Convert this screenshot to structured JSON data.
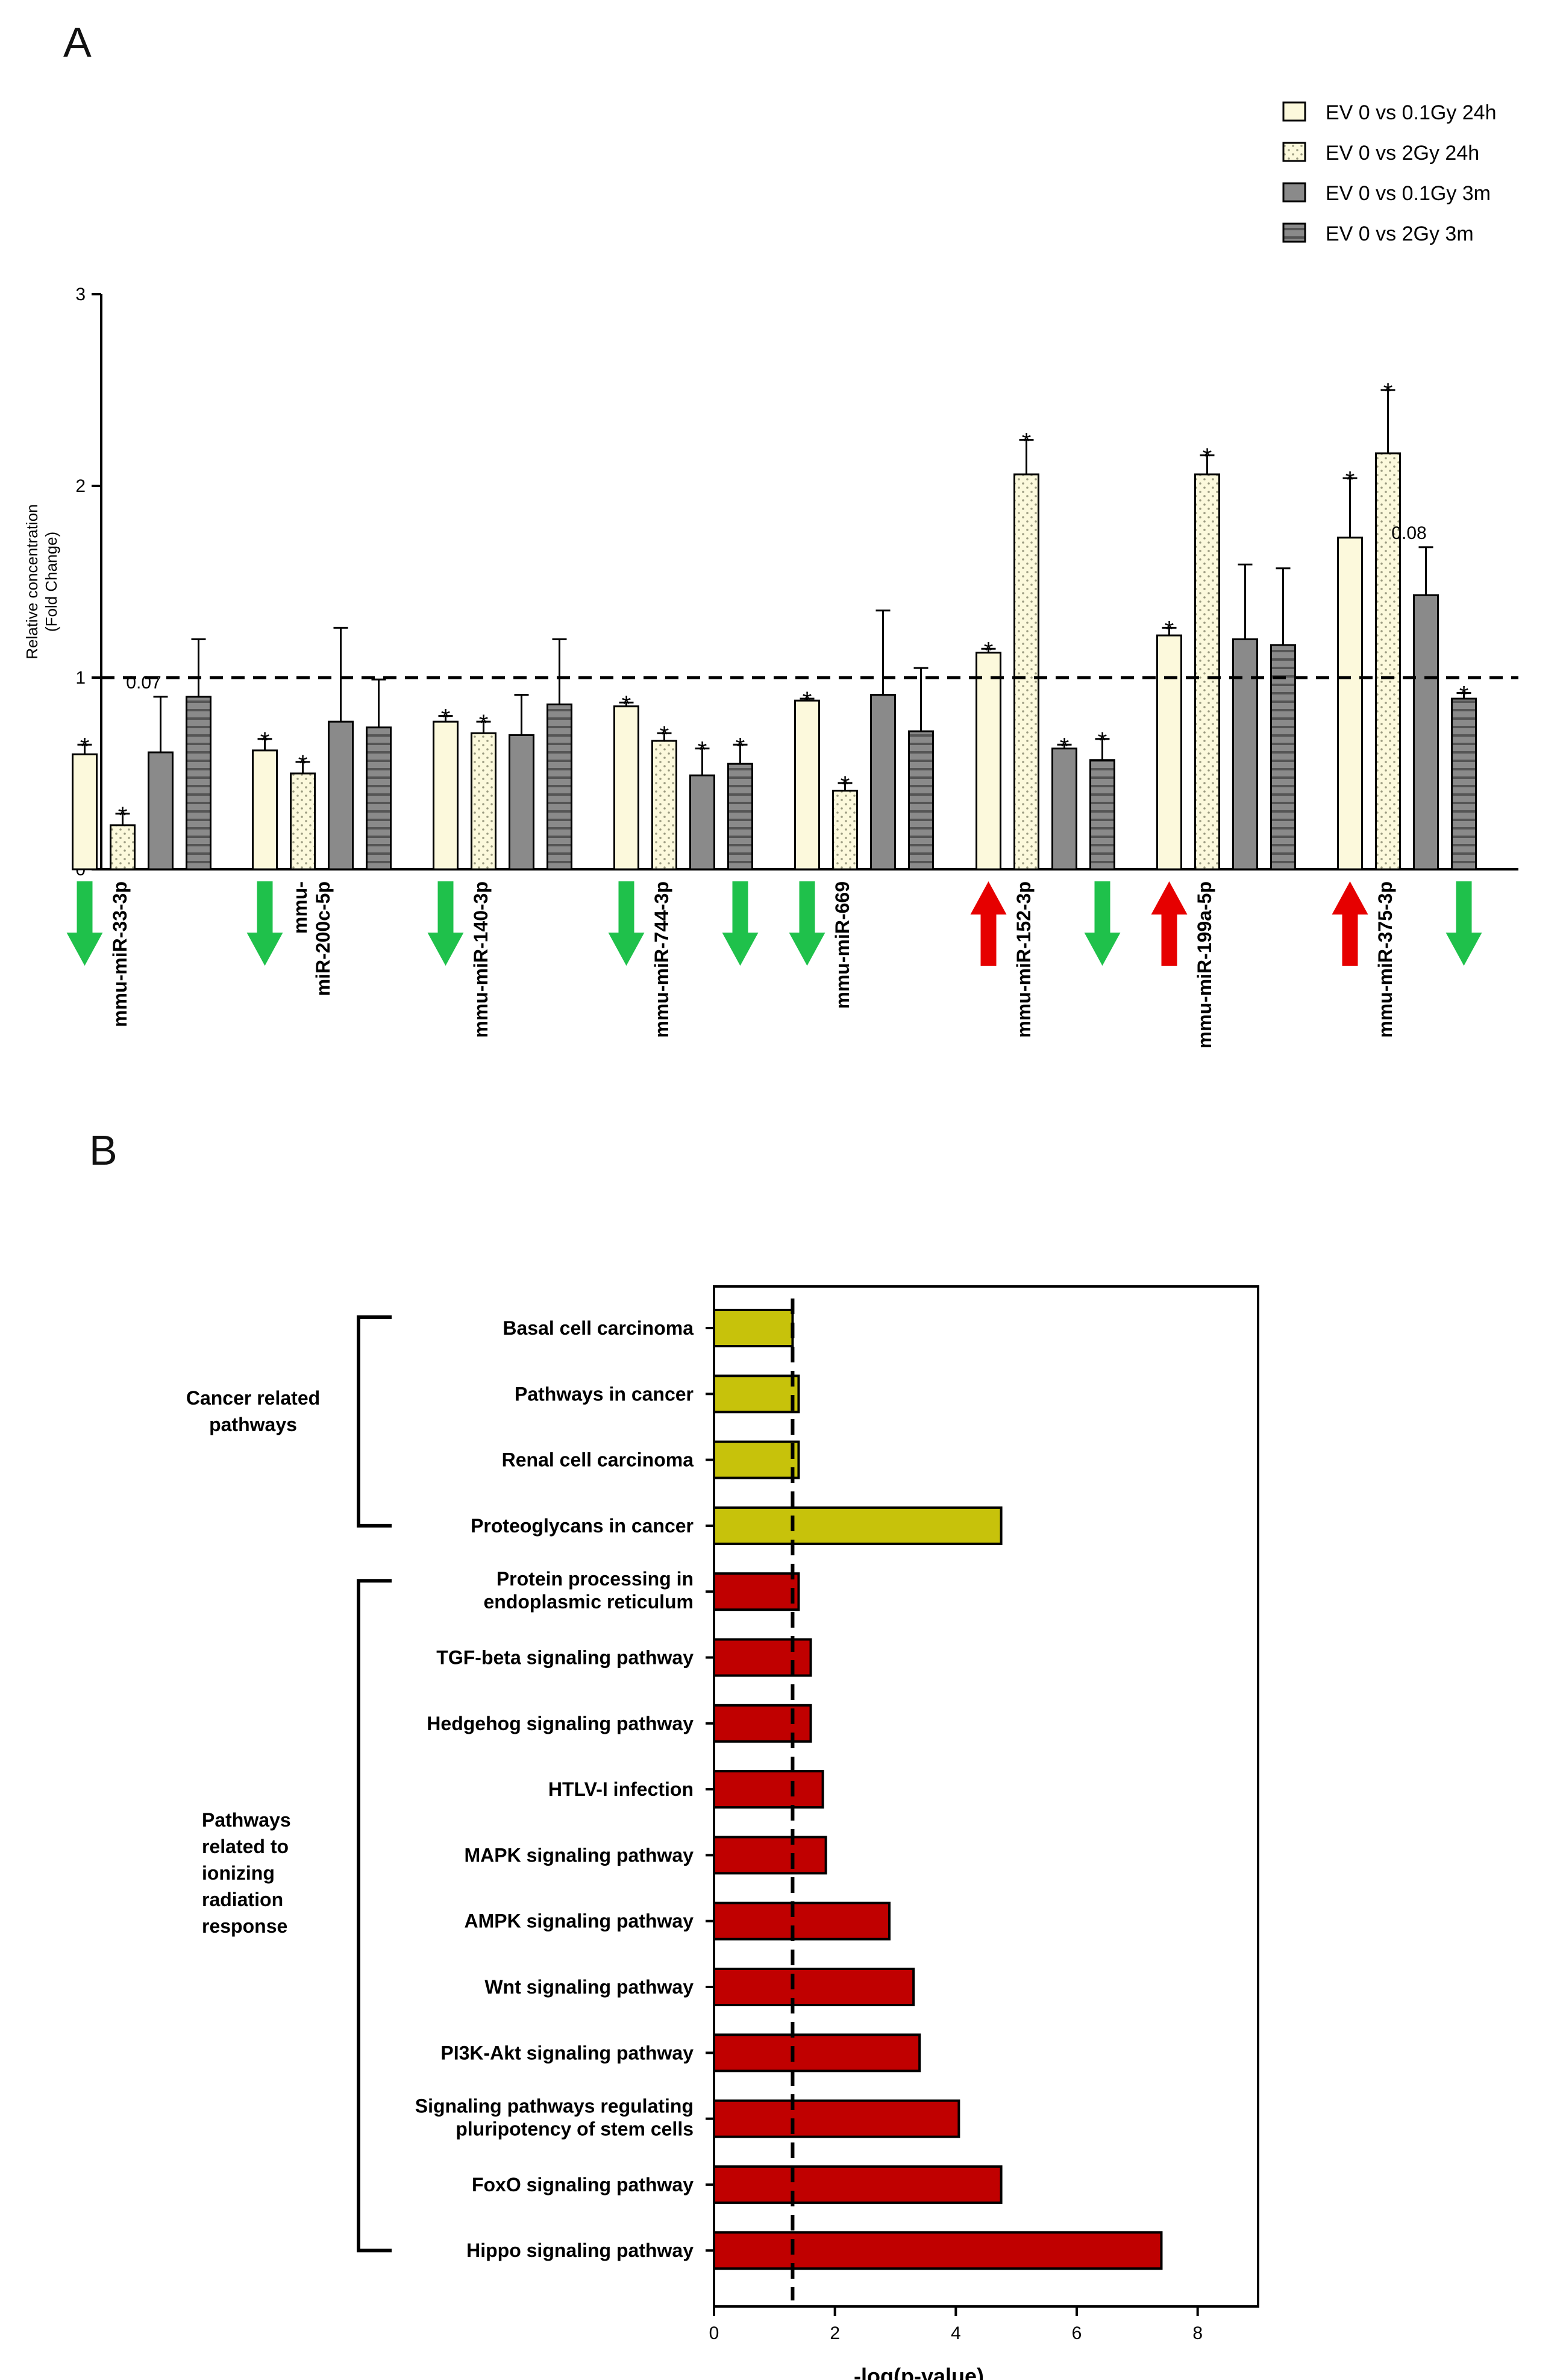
{
  "panel_labels": {
    "a": "A",
    "b": "B"
  },
  "colors": {
    "fill_24h": "#fcf9dc",
    "fill_3m": "#8a8a8a",
    "cancer": "#c7c20b",
    "radiation": "#c00000",
    "arrow_up": "#e60000",
    "arrow_down": "#1fc14b"
  },
  "chart_data": [
    {
      "type": "bar",
      "panel": "A",
      "title": "",
      "ylabel": "Relative concentration (Fold Change)",
      "ylabel_lines": [
        "Relative concentration",
        "(Fold Change)"
      ],
      "ylim": [
        0,
        3
      ],
      "yticks": [
        "0",
        "1",
        "2",
        "3"
      ],
      "reference_line": 1,
      "categories": [
        "mmu-miR-33-3p",
        "mmu-miR-200c-5p",
        "mmu-miR-140-3p",
        "mmu-miR-744-3p",
        "mmu-miR-669",
        "mmu-miR-152-3p",
        "mmu-miR-199a-5p",
        "mmu-miR-375-3p"
      ],
      "category_label_lines": [
        [
          "mmu-miR-33-3p"
        ],
        [
          "mmu-",
          "miR-200c-5p"
        ],
        [
          "mmu-miR-140-3p"
        ],
        [
          "mmu-miR-744-3p"
        ],
        [
          "mmu-miR-669"
        ],
        [
          "mmu-miR-152-3p"
        ],
        [
          "mmu-miR-199a-5p"
        ],
        [
          "mmu-miR-375-3p"
        ]
      ],
      "series": [
        {
          "name": "EV 0 vs 0.1Gy 24h",
          "pattern": "plain-light",
          "values": [
            0.6,
            0.62,
            0.77,
            0.85,
            0.88,
            1.13,
            1.22,
            1.73
          ],
          "errors": [
            0.05,
            0.06,
            0.03,
            0.02,
            0.01,
            0.02,
            0.04,
            0.31
          ],
          "annotations": [
            "*",
            "*",
            "*",
            "*",
            "*",
            "*",
            "*",
            "*"
          ]
        },
        {
          "name": "EV 0 vs 2Gy 24h",
          "pattern": "dotted-light",
          "values": [
            0.23,
            0.5,
            0.71,
            0.67,
            0.41,
            2.06,
            2.06,
            2.17
          ],
          "errors": [
            0.06,
            0.06,
            0.06,
            0.04,
            0.04,
            0.18,
            0.1,
            0.33
          ],
          "annotations": [
            "*",
            "*",
            "*",
            "*",
            "*",
            "*",
            "*",
            "*"
          ]
        },
        {
          "name": "EV 0 vs 0.1Gy 3m",
          "pattern": "plain-gray",
          "values": [
            0.61,
            0.77,
            0.7,
            0.49,
            0.91,
            0.63,
            1.2,
            1.43
          ],
          "errors": [
            0.29,
            0.49,
            0.21,
            0.14,
            0.44,
            0.02,
            0.39,
            0.25
          ],
          "annotations": [
            "0.07",
            "",
            "",
            "*",
            "",
            "*",
            "",
            "0.08"
          ]
        },
        {
          "name": "EV 0 vs 2Gy 3m",
          "pattern": "striped-gray",
          "values": [
            0.9,
            0.74,
            0.86,
            0.55,
            0.72,
            0.57,
            1.17,
            0.89
          ],
          "errors": [
            0.3,
            0.25,
            0.34,
            0.1,
            0.33,
            0.11,
            0.4,
            0.03
          ],
          "annotations": [
            "",
            "",
            "",
            "*",
            "",
            "*",
            "",
            "*"
          ]
        }
      ],
      "regulation_arrows": [
        {
          "category": "mmu-miR-33-3p",
          "slot": 0,
          "direction": "down"
        },
        {
          "category": "mmu-miR-200c-5p",
          "slot": 0,
          "direction": "down"
        },
        {
          "category": "mmu-miR-140-3p",
          "slot": 0,
          "direction": "down"
        },
        {
          "category": "mmu-miR-744-3p",
          "slot": 0,
          "direction": "down"
        },
        {
          "category": "mmu-miR-744-3p",
          "slot": 3,
          "direction": "down"
        },
        {
          "category": "mmu-miR-669",
          "slot": 0,
          "direction": "down"
        },
        {
          "category": "mmu-miR-152-3p",
          "slot": 0,
          "direction": "up"
        },
        {
          "category": "mmu-miR-152-3p",
          "slot": 3,
          "direction": "down"
        },
        {
          "category": "mmu-miR-199a-5p",
          "slot": 0,
          "direction": "up"
        },
        {
          "category": "mmu-miR-375-3p",
          "slot": 0,
          "direction": "up"
        },
        {
          "category": "mmu-miR-375-3p",
          "slot": 3,
          "direction": "down"
        }
      ]
    },
    {
      "type": "bar",
      "orientation": "horizontal",
      "panel": "B",
      "title": "",
      "xlabel": "-log(p-value)",
      "xlim": [
        0,
        9
      ],
      "xticks": [
        "0",
        "2",
        "4",
        "6",
        "8"
      ],
      "reference_line": 1.3,
      "categories": [
        "Basal cell carcinoma",
        "Pathways in cancer",
        "Renal cell carcinoma",
        "Proteoglycans in cancer",
        "Protein processing in endoplasmic reticulum",
        "TGF-beta signaling pathway",
        "Hedgehog signaling pathway",
        "HTLV-I infection",
        "MAPK signaling pathway",
        "AMPK signaling pathway",
        "Wnt signaling pathway",
        "PI3K-Akt signaling pathway",
        "Signaling pathways regulating pluripotency of stem cells",
        "FoxO signaling pathway",
        "Hippo signaling pathway"
      ],
      "category_label_lines": [
        [
          "Basal cell carcinoma"
        ],
        [
          "Pathways in cancer"
        ],
        [
          "Renal cell carcinoma"
        ],
        [
          "Proteoglycans in cancer"
        ],
        [
          "Protein processing in",
          "endoplasmic reticulum"
        ],
        [
          "TGF-beta signaling pathway"
        ],
        [
          "Hedgehog signaling pathway"
        ],
        [
          "HTLV-I infection"
        ],
        [
          "MAPK signaling pathway"
        ],
        [
          "AMPK signaling pathway"
        ],
        [
          "Wnt signaling pathway"
        ],
        [
          "PI3K-Akt signaling pathway"
        ],
        [
          "Signaling pathways regulating",
          "pluripotency of stem cells"
        ],
        [
          "FoxO signaling pathway"
        ],
        [
          "Hippo signaling pathway"
        ]
      ],
      "values": [
        1.3,
        1.4,
        1.4,
        4.75,
        1.4,
        1.6,
        1.6,
        1.8,
        1.85,
        2.9,
        3.3,
        3.4,
        4.05,
        4.75,
        7.4
      ],
      "groups": [
        {
          "name": "Cancer related pathways",
          "label_lines": [
            "Cancer related",
            "pathways"
          ],
          "start": 0,
          "end": 3,
          "color_key": "cancer"
        },
        {
          "name": "Pathways related to ionizing radiation response",
          "label_lines": [
            "Pathways",
            "related to",
            "ionizing",
            "radiation",
            "response"
          ],
          "start": 4,
          "end": 14,
          "color_key": "radiation"
        }
      ]
    }
  ]
}
